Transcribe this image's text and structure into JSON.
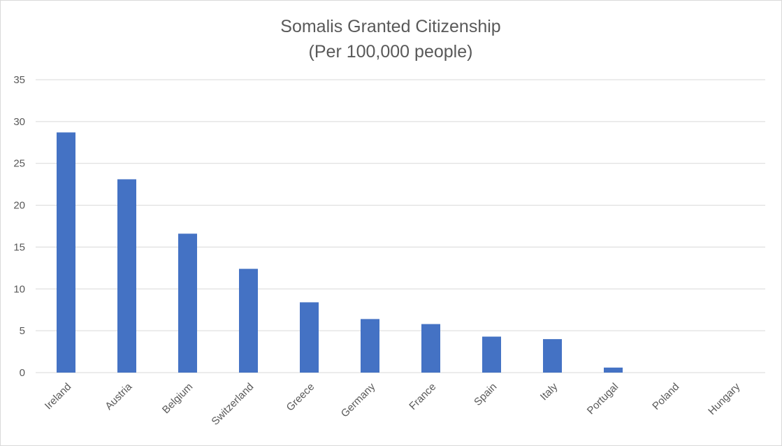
{
  "chart_data": {
    "type": "bar",
    "title": "Somalis Granted Citizenship",
    "subtitle": "(Per 100,000 people)",
    "xlabel": "",
    "ylabel": "",
    "categories": [
      "Ireland",
      "Austria",
      "Belgium",
      "Switzerland",
      "Greece",
      "Germany",
      "France",
      "Spain",
      "Italy",
      "Portugal",
      "Poland",
      "Hungary"
    ],
    "values": [
      28.7,
      23.1,
      16.6,
      12.4,
      8.4,
      6.4,
      5.8,
      4.3,
      4.0,
      0.6,
      0,
      0
    ],
    "ylim": [
      0,
      35
    ],
    "yticks": [
      0,
      5,
      10,
      15,
      20,
      25,
      30,
      35
    ],
    "grid": true,
    "legend": "none",
    "bar_color": "#4472C4"
  }
}
